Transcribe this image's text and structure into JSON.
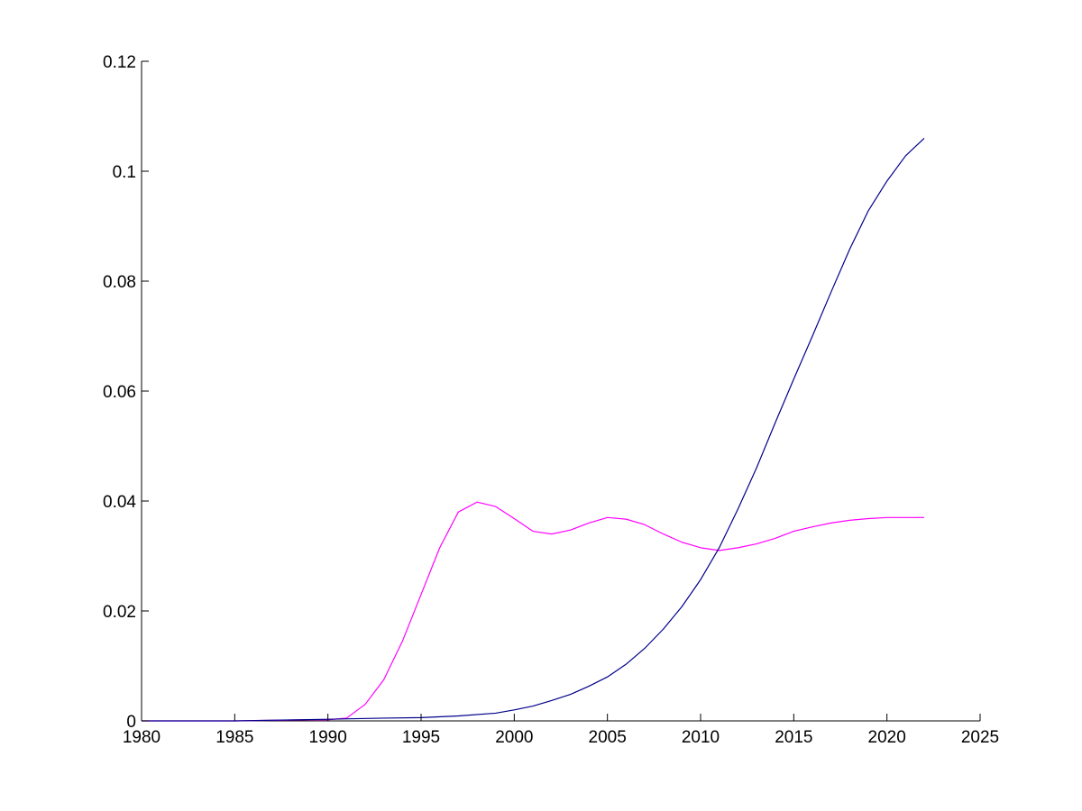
{
  "chart_data": {
    "type": "line",
    "title": "",
    "xlabel": "",
    "ylabel": "",
    "xlim": [
      1980,
      2025
    ],
    "ylim": [
      0,
      0.12
    ],
    "x_ticks": [
      1980,
      1985,
      1990,
      1995,
      2000,
      2005,
      2010,
      2015,
      2020,
      2025
    ],
    "y_ticks": [
      0,
      0.02,
      0.04,
      0.06,
      0.08,
      0.1,
      0.12
    ],
    "x_tick_labels": [
      "1980",
      "1985",
      "1990",
      "1995",
      "2000",
      "2005",
      "2010",
      "2015",
      "2020",
      "2025"
    ],
    "y_tick_labels": [
      "0",
      "0.02",
      "0.04",
      "0.06",
      "0.08",
      "0.1",
      "0.12"
    ],
    "grid": false,
    "legend": "none",
    "series": [
      {
        "color": "#ff00ff",
        "x": [
          1980,
          1985,
          1989,
          1990,
          1991,
          1992,
          1993,
          1994,
          1995,
          1996,
          1997,
          1998,
          1999,
          2000,
          2001,
          2002,
          2003,
          2004,
          2005,
          2006,
          2007,
          2008,
          2009,
          2010,
          2011,
          2012,
          2013,
          2014,
          2015,
          2016,
          2017,
          2018,
          2019,
          2020,
          2021,
          2022
        ],
        "y": [
          0,
          0,
          0.0002,
          0.0002,
          0.0005,
          0.003,
          0.0075,
          0.0145,
          0.023,
          0.0315,
          0.038,
          0.0398,
          0.039,
          0.0368,
          0.0345,
          0.034,
          0.0347,
          0.036,
          0.037,
          0.0367,
          0.0357,
          0.034,
          0.0325,
          0.0315,
          0.031,
          0.0315,
          0.0322,
          0.0332,
          0.0345,
          0.0353,
          0.036,
          0.0365,
          0.0368,
          0.037,
          0.037,
          0.037
        ]
      },
      {
        "color": "#00008b",
        "x": [
          1980,
          1985,
          1990,
          1993,
          1995,
          1997,
          1999,
          2000,
          2001,
          2002,
          2003,
          2004,
          2005,
          2006,
          2007,
          2008,
          2009,
          2010,
          2011,
          2012,
          2013,
          2014,
          2015,
          2016,
          2017,
          2018,
          2019,
          2020,
          2021,
          2022
        ],
        "y": [
          0,
          0,
          0.0003,
          0.0005,
          0.0006,
          0.0009,
          0.0014,
          0.002,
          0.0027,
          0.0037,
          0.0048,
          0.0063,
          0.008,
          0.0103,
          0.0132,
          0.0167,
          0.0208,
          0.0257,
          0.0315,
          0.0385,
          0.046,
          0.0542,
          0.0622,
          0.07,
          0.078,
          0.0858,
          0.0928,
          0.0982,
          0.1028,
          0.106
        ]
      }
    ]
  }
}
